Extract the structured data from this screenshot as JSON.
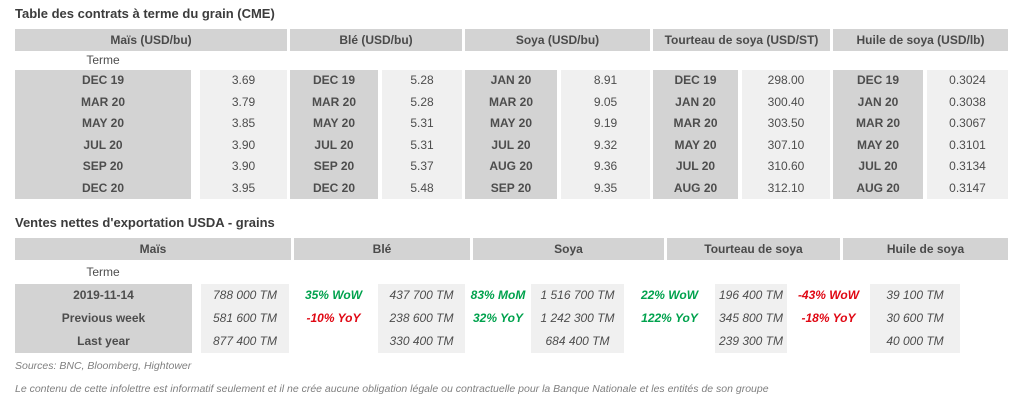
{
  "colors": {
    "positive": "#00A24D",
    "negative": "#E00713",
    "header_bg": "#D3D3D3",
    "value_bg": "#F0F0F0"
  },
  "futures_table": {
    "title": "Table des contrats à terme du grain (CME)",
    "terme_label": "Terme",
    "sections": [
      {
        "header": "Maïs (USD/bu)",
        "rows": [
          [
            "DEC 19",
            "3.69"
          ],
          [
            "MAR 20",
            "3.79"
          ],
          [
            "MAY 20",
            "3.85"
          ],
          [
            "JUL 20",
            "3.90"
          ],
          [
            "SEP 20",
            "3.90"
          ],
          [
            "DEC 20",
            "3.95"
          ]
        ]
      },
      {
        "header": "Blé (USD/bu)",
        "rows": [
          [
            "DEC 19",
            "5.28"
          ],
          [
            "MAR 20",
            "5.28"
          ],
          [
            "MAY 20",
            "5.31"
          ],
          [
            "JUL 20",
            "5.31"
          ],
          [
            "SEP 20",
            "5.37"
          ],
          [
            "DEC 20",
            "5.48"
          ]
        ]
      },
      {
        "header": "Soya (USD/bu)",
        "rows": [
          [
            "JAN 20",
            "8.91"
          ],
          [
            "MAR 20",
            "9.05"
          ],
          [
            "MAY 20",
            "9.19"
          ],
          [
            "JUL 20",
            "9.32"
          ],
          [
            "AUG 20",
            "9.36"
          ],
          [
            "SEP 20",
            "9.35"
          ]
        ]
      },
      {
        "header": "Tourteau de soya (USD/ST)",
        "rows": [
          [
            "DEC 19",
            "298.00"
          ],
          [
            "JAN 20",
            "300.40"
          ],
          [
            "MAR 20",
            "303.50"
          ],
          [
            "MAY 20",
            "307.10"
          ],
          [
            "JUL 20",
            "310.60"
          ],
          [
            "AUG 20",
            "312.10"
          ]
        ]
      },
      {
        "header": "Huile de soya (USD/lb)",
        "rows": [
          [
            "DEC 19",
            "0.3024"
          ],
          [
            "JAN 20",
            "0.3038"
          ],
          [
            "MAR 20",
            "0.3067"
          ],
          [
            "MAY 20",
            "0.3101"
          ],
          [
            "JUL 20",
            "0.3134"
          ],
          [
            "AUG 20",
            "0.3147"
          ]
        ]
      }
    ]
  },
  "usda_table": {
    "title": "Ventes nettes d'exportation USDA - grains",
    "terme_label": "Terme",
    "headers": [
      "Maïs",
      "Blé",
      "Soya",
      "Tourteau de soya",
      "Huile de soya"
    ],
    "rows": [
      {
        "label": "2019-11-14",
        "cells": [
          {
            "type": "value",
            "text": "788 000 TM"
          },
          {
            "type": "change",
            "text": "35% WoW",
            "trend": "positive"
          },
          {
            "type": "value",
            "text": "437 700 TM"
          },
          {
            "type": "change",
            "text": "83% MoM",
            "trend": "positive"
          },
          {
            "type": "value",
            "text": "1 516 700 TM"
          },
          {
            "type": "change",
            "text": "22% WoW",
            "trend": "positive"
          },
          {
            "type": "value",
            "text": "196 400 TM"
          },
          {
            "type": "change",
            "text": "-43% WoW",
            "trend": "negative"
          },
          {
            "type": "value",
            "text": "39 100 TM"
          }
        ]
      },
      {
        "label": "Previous week",
        "cells": [
          {
            "type": "value",
            "text": "581 600 TM"
          },
          {
            "type": "change",
            "text": "-10% YoY",
            "trend": "negative"
          },
          {
            "type": "value",
            "text": "238 600 TM"
          },
          {
            "type": "change",
            "text": "32% YoY",
            "trend": "positive"
          },
          {
            "type": "value",
            "text": "1 242 300 TM"
          },
          {
            "type": "change",
            "text": "122% YoY",
            "trend": "positive"
          },
          {
            "type": "value",
            "text": "345 800 TM"
          },
          {
            "type": "change",
            "text": "-18% YoY",
            "trend": "negative"
          },
          {
            "type": "value",
            "text": "30 600 TM"
          }
        ]
      },
      {
        "label": "Last year",
        "cells": [
          {
            "type": "value",
            "text": "877 400 TM"
          },
          {
            "type": "change",
            "text": "",
            "trend": null
          },
          {
            "type": "value",
            "text": "330 400 TM"
          },
          {
            "type": "change",
            "text": "",
            "trend": null
          },
          {
            "type": "value",
            "text": "684 400 TM"
          },
          {
            "type": "change",
            "text": "",
            "trend": null
          },
          {
            "type": "value",
            "text": "239 300 TM"
          },
          {
            "type": "change",
            "text": "",
            "trend": null
          },
          {
            "type": "value",
            "text": "40 000 TM"
          }
        ]
      }
    ]
  },
  "footer": {
    "sources": "Sources: BNC, Bloomberg, Hightower",
    "disclaimer": "Le contenu de cette infolettre est informatif seulement et il ne crée aucune obligation légale ou contractuelle pour la Banque Nationale et les entités de son groupe"
  }
}
